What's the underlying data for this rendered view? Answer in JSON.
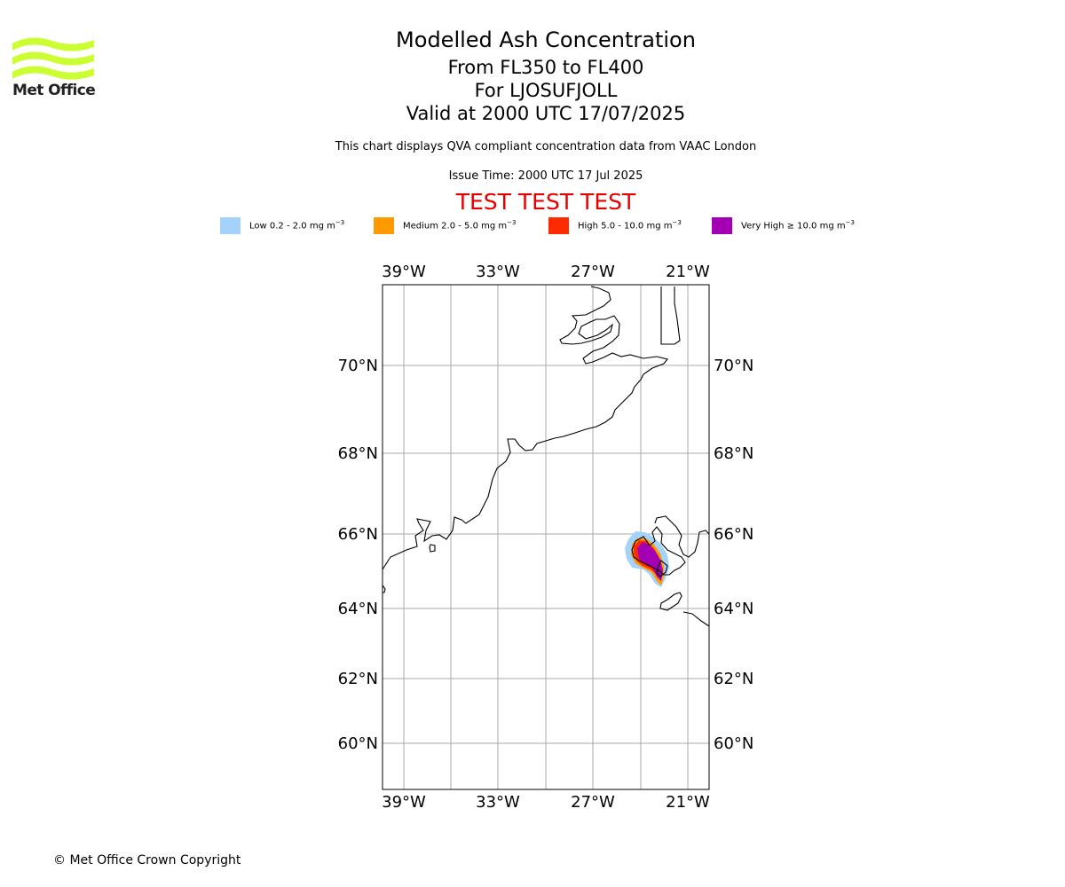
{
  "logo": {
    "text": "Met Office",
    "brand_color": "#ccff33"
  },
  "header": {
    "title": "Modelled Ash Concentration",
    "subtitle_levels": "From FL350 to FL400",
    "subtitle_location": "For LJOSUFJOLL",
    "subtitle_valid": "Valid at 2000 UTC 17/07/2025",
    "description": "This chart displays QVA compliant concentration data from VAAC London",
    "issue_time": "Issue Time: 2000 UTC 17 Jul 2025",
    "test_banner": "TEST TEST TEST"
  },
  "legend": [
    {
      "label": "Low 0.2 - 2.0 mg m",
      "unit_exp": "−3",
      "color": "#a3d3fa"
    },
    {
      "label": "Medium 2.0 - 5.0 mg m",
      "unit_exp": "−3",
      "color": "#ff9900"
    },
    {
      "label": "High 5.0 - 10.0 mg m",
      "unit_exp": "−3",
      "color": "#ff2b00"
    },
    {
      "label": "Very High  ≥  10.0 mg m",
      "unit_exp": "−3",
      "color": "#a300b3"
    }
  ],
  "map": {
    "lon_ticks": [
      "39°W",
      "33°W",
      "27°W",
      "21°W"
    ],
    "lat_ticks": [
      "70°N",
      "68°N",
      "66°N",
      "64°N",
      "62°N",
      "60°N"
    ],
    "grid_color": "#aaaaaa"
  },
  "footer": {
    "copyright": "© Met Office Crown Copyright"
  }
}
